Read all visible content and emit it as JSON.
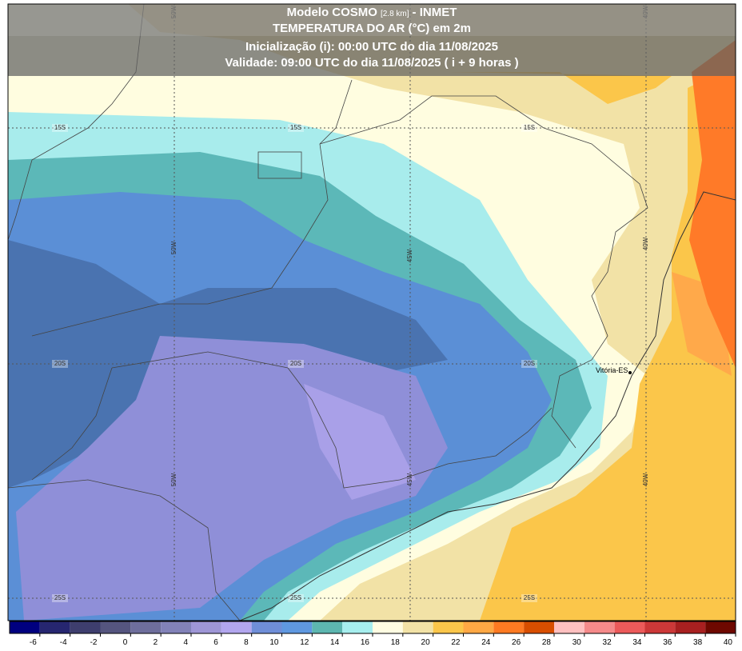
{
  "header": {
    "model": "Modelo COSMO",
    "resolution": "[2.8 km]",
    "source": "- INMET",
    "variable": "TEMPERATURA DO AR (°C) em 2m",
    "init": "Inicialização (i): 00:00 UTC do dia 11/08/2025",
    "valid": "Validade: 09:00 UTC do dia 11/08/2025 ( i + 9 horas )"
  },
  "grid": {
    "latitudes": [
      "15S",
      "20S",
      "25S"
    ],
    "longitudes": [
      "50W",
      "45W",
      "40W"
    ]
  },
  "places": [
    "Vitória-ES"
  ],
  "legend": {
    "ticks": [
      -6,
      -4,
      -2,
      0,
      2,
      4,
      6,
      8,
      10,
      12,
      14,
      16,
      18,
      20,
      22,
      24,
      26,
      28,
      30,
      32,
      34,
      36,
      38,
      40
    ],
    "colors": [
      "#00007f",
      "#262670",
      "#3e3e6e",
      "#55557f",
      "#6e6e9c",
      "#8282b8",
      "#9e96d6",
      "#b2a6ee",
      "#6f8ed8",
      "#5f98e0",
      "#5db6b0",
      "#a6eeee",
      "#fffde2",
      "#f2e2a6",
      "#fbc64a",
      "#ffa844",
      "#ff7a22",
      "#d84e00",
      "#ffc0c0",
      "#f58a8a",
      "#ec5a5a",
      "#cc3838",
      "#a82020",
      "#6e0800"
    ]
  }
}
